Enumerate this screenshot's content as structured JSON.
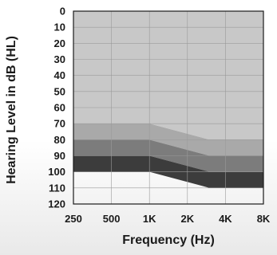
{
  "chart_data": {
    "type": "area",
    "xlabel": "Frequency (Hz)",
    "ylabel": "Hearing Level in dB (HL)",
    "x_tick_labels": [
      "250",
      "500",
      "1K",
      "2K",
      "4K",
      "8K"
    ],
    "y_ticks": [
      0,
      10,
      20,
      30,
      40,
      50,
      60,
      70,
      80,
      90,
      100,
      110,
      120
    ],
    "ylim": [
      0,
      120
    ],
    "y_inverted": true,
    "grid": true,
    "band_boundaries": {
      "x": [
        "250",
        "500",
        "1K",
        "3K",
        "8K"
      ],
      "values": [
        [
          70,
          70,
          70,
          80,
          80
        ],
        [
          80,
          80,
          80,
          90,
          90
        ],
        [
          90,
          90,
          90,
          100,
          100
        ],
        [
          100,
          100,
          100,
          110,
          110
        ]
      ]
    },
    "bands": [
      {
        "from": "top",
        "to": 0,
        "color": "#c8c8c8"
      },
      {
        "from": 0,
        "to": 1,
        "color": "#a9a9a9"
      },
      {
        "from": 1,
        "to": 2,
        "color": "#7c7c7c"
      },
      {
        "from": 2,
        "to": 3,
        "color": "#3c3c3c"
      }
    ]
  }
}
